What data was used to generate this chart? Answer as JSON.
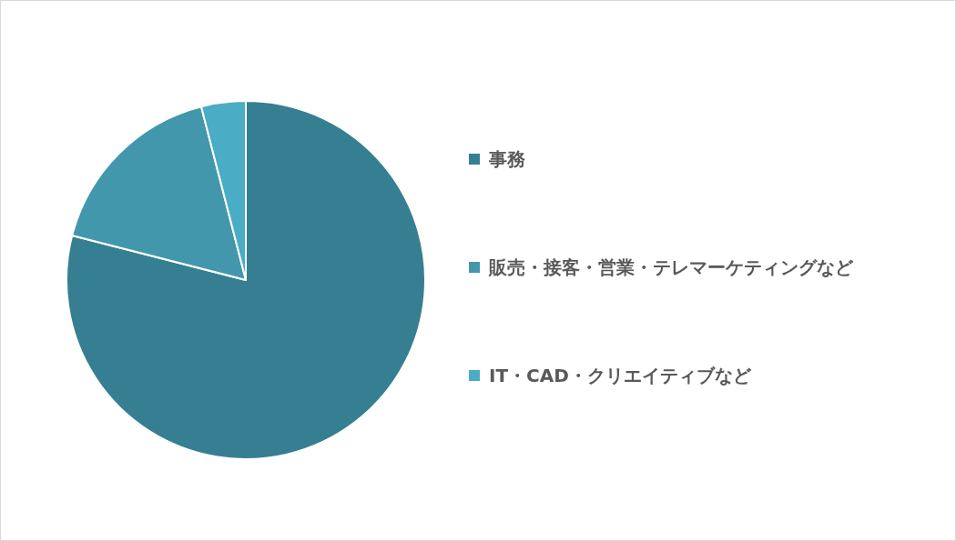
{
  "chart_data": {
    "type": "pie",
    "categories": [
      "事務",
      "販売・接客・営業・テレマーケティングなど",
      "IT・CAD・クリエイティブなど"
    ],
    "values": [
      79,
      17,
      4
    ],
    "colors": [
      "#367f93",
      "#4397ad",
      "#4aacc5"
    ],
    "legend": "right"
  }
}
